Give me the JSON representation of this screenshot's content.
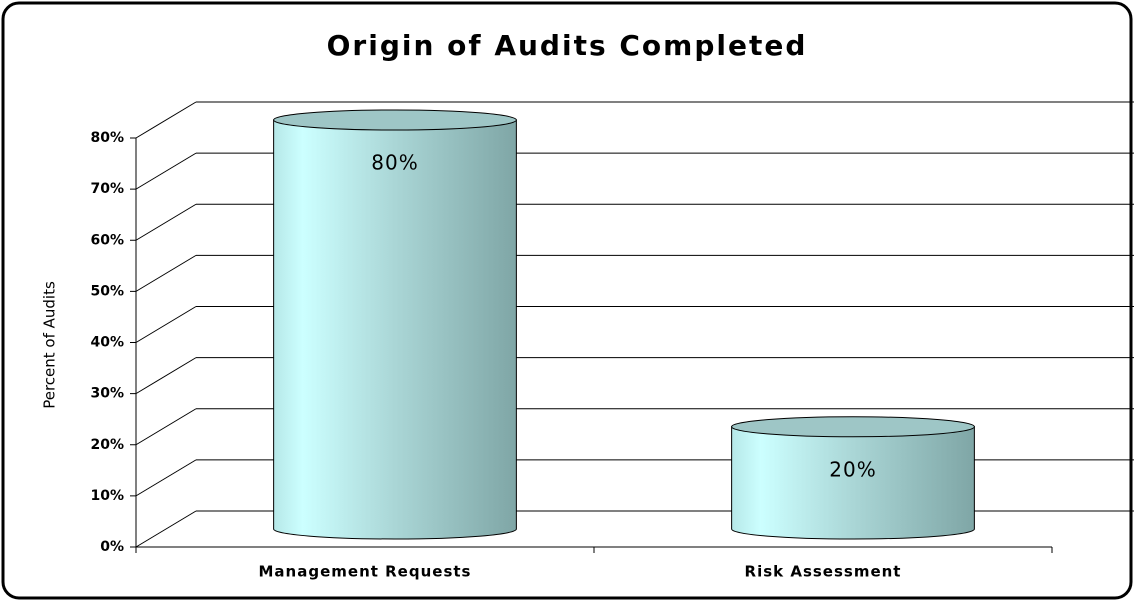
{
  "chart_data": {
    "type": "cylinder",
    "title": "Origin of Audits Completed",
    "y_label": "Percent of Audits",
    "categories": [
      "Management Requests",
      "Risk Assessment"
    ],
    "values": [
      80,
      20
    ],
    "value_labels": [
      "80%",
      "20%"
    ],
    "color": "#a8dcdc",
    "ylim": [
      0,
      80
    ],
    "yticks": [
      {
        "value": 0,
        "label": "0%"
      },
      {
        "value": 10,
        "label": "10%"
      },
      {
        "value": 20,
        "label": "20%"
      },
      {
        "value": 30,
        "label": "30%"
      },
      {
        "value": 40,
        "label": "40%"
      },
      {
        "value": 50,
        "label": "50%"
      },
      {
        "value": 60,
        "label": "60%"
      },
      {
        "value": 70,
        "label": "70%"
      },
      {
        "value": 80,
        "label": "80%"
      }
    ],
    "grid": true
  }
}
